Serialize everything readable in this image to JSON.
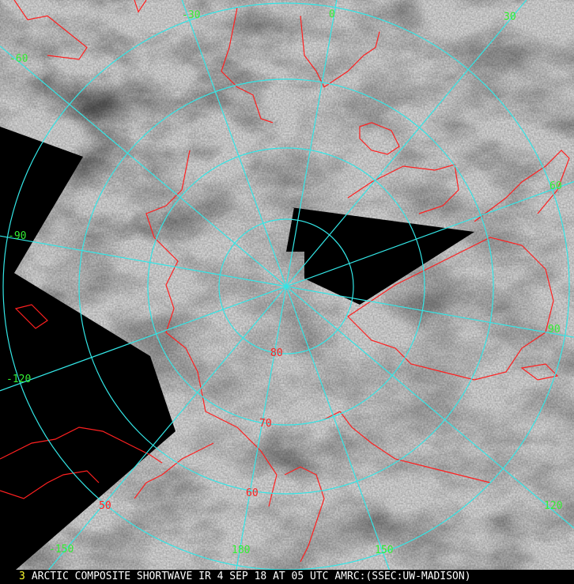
{
  "caption": {
    "frame_number": "3",
    "title": "ARCTIC COMPOSITE SHORTWAVE IR 4 SEP 18 AT 05 UTC AMRC:(SSEC:UW-MADISON)"
  },
  "map": {
    "projection": "polar stereographic (north pole)",
    "graticule_color": "#33e6e6",
    "coastline_color": "#ff2020",
    "no_data_color": "#000000",
    "longitude_labels": [
      "-30",
      "0",
      "30",
      "-60",
      "60",
      "-90",
      "90",
      "-120",
      "120",
      "-150",
      "150",
      "180"
    ],
    "latitude_labels": [
      "80",
      "70",
      "60",
      "50"
    ],
    "longitude_label_color": "#33ee33",
    "latitude_label_color": "#ff2020"
  }
}
